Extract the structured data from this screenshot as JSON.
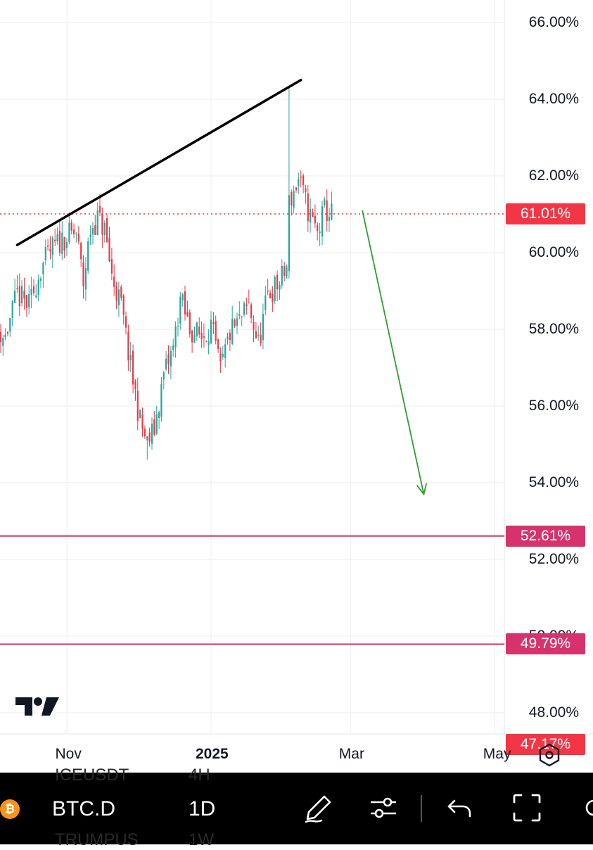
{
  "chart_data": {
    "type": "candlestick",
    "title": "",
    "xlabel": "",
    "ylabel": "",
    "ylim": [
      47.0,
      66.5
    ],
    "x_ticks": [
      "Nov",
      "2025",
      "Mar",
      "May"
    ],
    "y_ticks": [
      "66.00%",
      "64.00%",
      "62.00%",
      "60.00%",
      "58.00%",
      "56.00%",
      "54.00%",
      "52.00%",
      "50.00%",
      "48.00%"
    ],
    "grid": true,
    "colors": {
      "up": "#26a69a",
      "down": "#f23645",
      "level_line": "#d6336c",
      "projection_arrow": "#2e9e2e",
      "trend_line": "#000000"
    },
    "series": [
      {
        "type": "candles",
        "close_path": [
          [
            "2024-10-01",
            58.1
          ],
          [
            "2024-10-06",
            57.8
          ],
          [
            "2024-10-11",
            58.9
          ],
          [
            "2024-10-16",
            58.6
          ],
          [
            "2024-10-21",
            59.6
          ],
          [
            "2024-10-26",
            60.1
          ],
          [
            "2024-10-31",
            60.4
          ],
          [
            "2024-11-05",
            60.5
          ],
          [
            "2024-11-08",
            59.2
          ],
          [
            "2024-11-11",
            60.6
          ],
          [
            "2024-11-14",
            60.9
          ],
          [
            "2024-11-17",
            60.6
          ],
          [
            "2024-11-20",
            59.4
          ],
          [
            "2024-11-24",
            58.6
          ],
          [
            "2024-11-28",
            57.0
          ],
          [
            "2024-12-02",
            55.6
          ],
          [
            "2024-12-05",
            55.0
          ],
          [
            "2024-12-08",
            55.4
          ],
          [
            "2024-12-12",
            56.8
          ],
          [
            "2024-12-16",
            57.5
          ],
          [
            "2024-12-19",
            58.8
          ],
          [
            "2024-12-23",
            58.0
          ],
          [
            "2024-12-28",
            57.8
          ],
          [
            "2025-01-01",
            58.1
          ],
          [
            "2025-01-05",
            56.9
          ],
          [
            "2025-01-09",
            57.9
          ],
          [
            "2025-01-13",
            58.2
          ],
          [
            "2025-01-17",
            58.6
          ],
          [
            "2025-01-21",
            57.6
          ],
          [
            "2025-01-25",
            58.9
          ],
          [
            "2025-01-30",
            59.2
          ],
          [
            "2025-02-02",
            59.6
          ],
          [
            "2025-02-03",
            61.3
          ],
          [
            "2025-02-07",
            61.9
          ],
          [
            "2025-02-11",
            61.1
          ],
          [
            "2025-02-15",
            60.5
          ],
          [
            "2025-02-18",
            61.1
          ],
          [
            "2025-02-21",
            61.0
          ]
        ],
        "notable_wicks": {
          "high": [
            "2025-02-03",
            64.3
          ],
          "low": [
            "2024-12-05",
            54.6
          ]
        }
      },
      {
        "type": "trend_line",
        "points": [
          [
            "2024-10-11",
            60.2
          ],
          [
            "2025-02-08",
            64.5
          ]
        ]
      },
      {
        "type": "projection_arrow",
        "points": [
          [
            "2025-03-06",
            61.1
          ],
          [
            "2025-04-01",
            53.7
          ]
        ]
      },
      {
        "type": "horizontal_line",
        "value": 52.61
      },
      {
        "type": "horizontal_line",
        "value": 49.79
      },
      {
        "type": "last_price_line",
        "value": 61.01
      }
    ],
    "price_badges": [
      {
        "label": "61.01%",
        "value": 61.01,
        "color": "#f23645"
      },
      {
        "label": "52.61%",
        "value": 52.61,
        "color": "#d6336c"
      },
      {
        "label": "49.79%",
        "value": 49.79,
        "color": "#d6336c"
      },
      {
        "label": "47.17%",
        "value": 47.17,
        "color": "#f23645"
      }
    ]
  },
  "toolbar": {
    "symbol": "BTC.D",
    "interval": "1D",
    "bitcoin_icon": "bitcoin-icon",
    "icons": [
      "pencil-icon",
      "sliders-icon",
      "undo-icon",
      "fullscreen-icon"
    ],
    "ghost_text": [
      "ICEUSDT",
      "4H",
      "TRUMPUS",
      "1W"
    ]
  },
  "settings_icon": "hexagon-settings-icon",
  "logo": "tradingview-logo"
}
